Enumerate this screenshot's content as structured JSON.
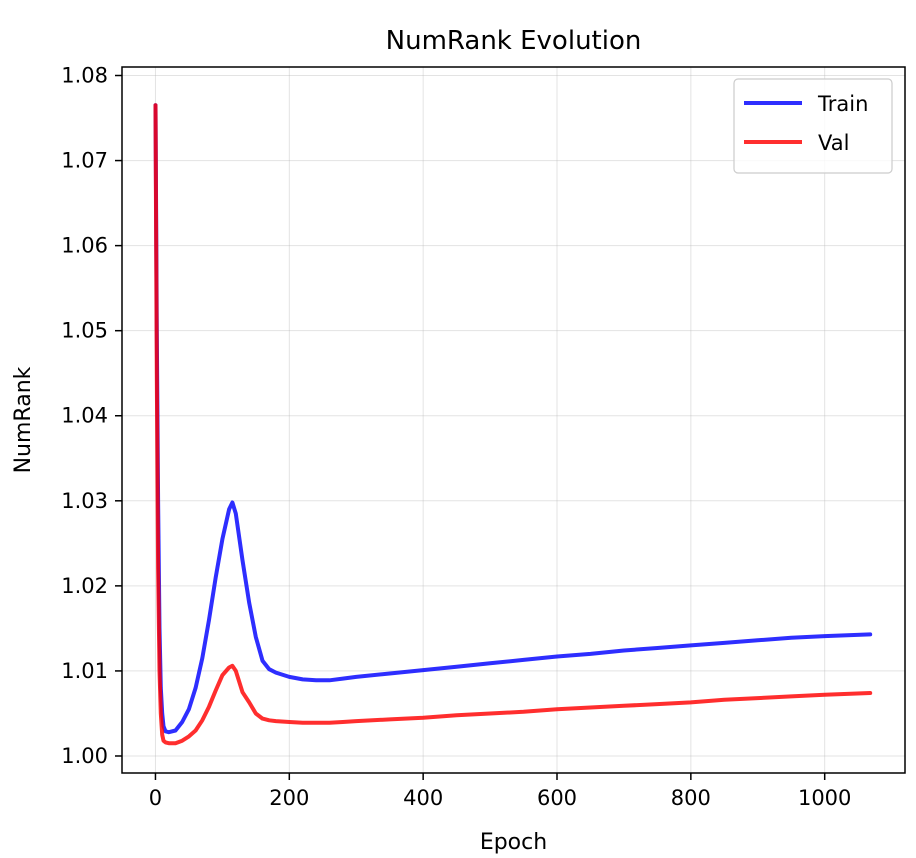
{
  "chart_data": {
    "type": "line",
    "title": "NumRank Evolution",
    "xlabel": "Epoch",
    "ylabel": "NumRank",
    "xlim": [
      -50,
      1120
    ],
    "ylim": [
      0.998,
      1.081
    ],
    "xticks": [
      0,
      200,
      400,
      600,
      800,
      1000
    ],
    "xtick_labels": [
      "0",
      "200",
      "400",
      "600",
      "800",
      "1000"
    ],
    "yticks": [
      1.0,
      1.01,
      1.02,
      1.03,
      1.04,
      1.05,
      1.06,
      1.07,
      1.08
    ],
    "ytick_labels": [
      "1.00",
      "1.01",
      "1.02",
      "1.03",
      "1.04",
      "1.05",
      "1.06",
      "1.07",
      "1.08"
    ],
    "grid": true,
    "legend": "top-right",
    "series": [
      {
        "name": "Train",
        "color": "#0000ff",
        "x": [
          0,
          2,
          4,
          6,
          8,
          10,
          12,
          15,
          20,
          30,
          40,
          50,
          60,
          70,
          80,
          90,
          100,
          110,
          115,
          120,
          130,
          140,
          150,
          160,
          170,
          180,
          200,
          220,
          240,
          260,
          280,
          300,
          350,
          400,
          450,
          500,
          550,
          600,
          650,
          700,
          750,
          800,
          850,
          900,
          950,
          1000,
          1068
        ],
        "y": [
          1.0765,
          1.05,
          1.03,
          1.015,
          1.008,
          1.005,
          1.0035,
          1.0029,
          1.0028,
          1.003,
          1.004,
          1.0055,
          1.008,
          1.0115,
          1.016,
          1.021,
          1.0255,
          1.029,
          1.0298,
          1.0285,
          1.023,
          1.018,
          1.014,
          1.0112,
          1.0102,
          1.0098,
          1.0093,
          1.009,
          1.0089,
          1.0089,
          1.0091,
          1.0093,
          1.0097,
          1.0101,
          1.0105,
          1.0109,
          1.0113,
          1.0117,
          1.012,
          1.0124,
          1.0127,
          1.013,
          1.0133,
          1.0136,
          1.0139,
          1.0141,
          1.0143
        ]
      },
      {
        "name": "Val",
        "color": "#ff0000",
        "x": [
          0,
          2,
          4,
          6,
          8,
          10,
          12,
          15,
          20,
          30,
          40,
          50,
          60,
          70,
          80,
          90,
          100,
          110,
          115,
          120,
          130,
          140,
          150,
          160,
          170,
          180,
          200,
          220,
          240,
          260,
          280,
          300,
          350,
          400,
          450,
          500,
          550,
          600,
          650,
          700,
          750,
          800,
          850,
          900,
          950,
          1000,
          1068
        ],
        "y": [
          1.0765,
          1.045,
          1.022,
          1.01,
          1.005,
          1.0025,
          1.0018,
          1.0016,
          1.0015,
          1.0015,
          1.0018,
          1.0023,
          1.003,
          1.0042,
          1.0058,
          1.0077,
          1.0095,
          1.0104,
          1.0106,
          1.01,
          1.0075,
          1.0063,
          1.005,
          1.0044,
          1.0042,
          1.0041,
          1.004,
          1.0039,
          1.0039,
          1.0039,
          1.004,
          1.0041,
          1.0043,
          1.0045,
          1.0048,
          1.005,
          1.0052,
          1.0055,
          1.0057,
          1.0059,
          1.0061,
          1.0063,
          1.0066,
          1.0068,
          1.007,
          1.0072,
          1.0074
        ]
      }
    ]
  }
}
